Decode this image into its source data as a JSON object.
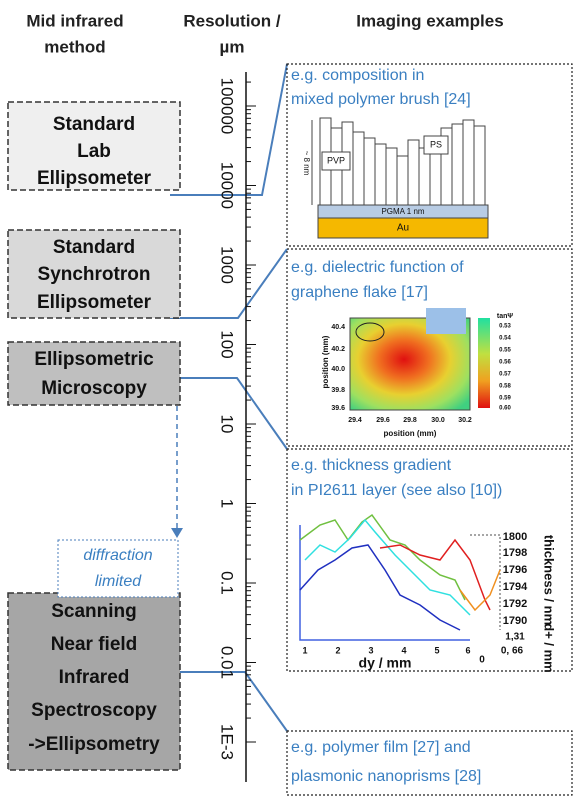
{
  "headers": {
    "method": [
      "Mid infrared",
      "method"
    ],
    "resolution": [
      "Resolution /",
      "µm"
    ],
    "examples": [
      "Imaging examples"
    ]
  },
  "axis": {
    "ticks": [
      "100000",
      "10000",
      "1000",
      "100",
      "10",
      "1",
      "0.1",
      "0.01",
      "1E-3"
    ]
  },
  "methods": [
    {
      "lines": [
        "Standard",
        "Lab",
        "Ellipsometer"
      ]
    },
    {
      "lines": [
        "Standard",
        "Synchrotron",
        "Ellipsometer"
      ]
    },
    {
      "lines": [
        "Ellipsometric",
        "Microscopy"
      ]
    },
    {
      "lines": [
        "Scanning",
        "Near field",
        "Infrared",
        "Spectroscopy",
        "->Ellipsometry"
      ]
    }
  ],
  "note": {
    "lines": [
      "diffraction",
      "limited"
    ]
  },
  "examples": [
    {
      "caption": [
        "e.g. composition in",
        "mixed polymer brush [24]"
      ],
      "labels": [
        "PVP",
        "PS",
        "~ 8 nm",
        "PGMA 1 nm",
        "Au"
      ]
    },
    {
      "caption": [
        "e.g. dielectric function of",
        "graphene flake [17]"
      ],
      "labels": [
        "40.4",
        "40.2",
        "40.0",
        "39.8",
        "39.6",
        "29.4",
        "29.6",
        "29.8",
        "30.0",
        "30.2",
        "position (mm)",
        "position (mm)",
        "tanΨ",
        "0.53",
        "0.54",
        "0.55",
        "0.56",
        "0.57",
        "0.58",
        "0.59",
        "0.60"
      ]
    },
    {
      "caption": [
        "e.g. thickness gradient",
        "in PI2611 layer (see also [10])"
      ],
      "labels": [
        "1800",
        "1798",
        "1796",
        "1794",
        "1792",
        "1790",
        "thickness / nm",
        "1,31",
        "0, 66",
        "0",
        "d+ / mm",
        "1",
        "2",
        "3",
        "4",
        "5",
        "6",
        "dy / mm"
      ]
    },
    {
      "caption": [
        "e.g. polymer film [27] and",
        "plasmonic nanoprisms [28]"
      ],
      "labels": []
    }
  ]
}
